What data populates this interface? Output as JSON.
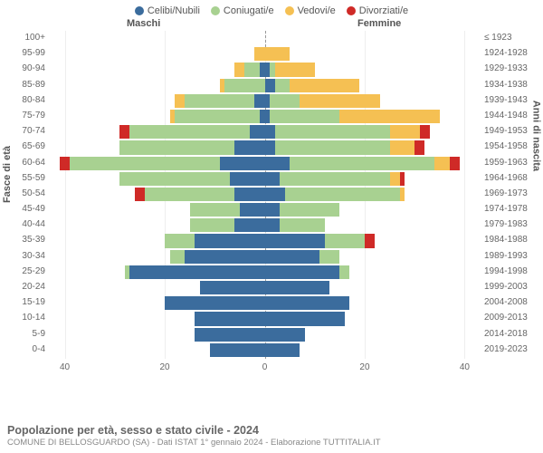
{
  "legend": [
    {
      "label": "Celibi/Nubili",
      "color": "#3b6c9d"
    },
    {
      "label": "Coniugati/e",
      "color": "#a8d191"
    },
    {
      "label": "Vedovi/e",
      "color": "#f5c053"
    },
    {
      "label": "Divorziati/e",
      "color": "#cf2a27"
    }
  ],
  "header_male": "Maschi",
  "header_female": "Femmine",
  "header_year_first": "≤ 1923",
  "axis_left_title": "Fasce di età",
  "axis_right_title": "Anni di nascita",
  "x_ticks": [
    40,
    20,
    0,
    20,
    40
  ],
  "x_max": 43,
  "title": "Popolazione per età, sesso e stato civile - 2024",
  "subtitle": "COMUNE DI BELLOSGUARDO (SA) - Dati ISTAT 1° gennaio 2024 - Elaborazione TUTTITALIA.IT",
  "colors": {
    "celibi": "#3b6c9d",
    "coniugati": "#a8d191",
    "vedovi": "#f5c053",
    "divorziati": "#cf2a27"
  },
  "rows": [
    {
      "age": "100+",
      "year": "≤ 1923",
      "m": [
        0,
        0,
        0,
        0
      ],
      "f": [
        0,
        0,
        0,
        0
      ]
    },
    {
      "age": "95-99",
      "year": "1924-1928",
      "m": [
        0,
        0,
        2,
        0
      ],
      "f": [
        0,
        0,
        5,
        0
      ]
    },
    {
      "age": "90-94",
      "year": "1929-1933",
      "m": [
        1,
        3,
        2,
        0
      ],
      "f": [
        1,
        1,
        8,
        0
      ]
    },
    {
      "age": "85-89",
      "year": "1934-1938",
      "m": [
        0,
        8,
        1,
        0
      ],
      "f": [
        2,
        3,
        14,
        0
      ]
    },
    {
      "age": "80-84",
      "year": "1939-1943",
      "m": [
        2,
        14,
        2,
        0
      ],
      "f": [
        1,
        6,
        16,
        0
      ]
    },
    {
      "age": "75-79",
      "year": "1944-1948",
      "m": [
        1,
        17,
        1,
        0
      ],
      "f": [
        1,
        14,
        20,
        0
      ]
    },
    {
      "age": "70-74",
      "year": "1949-1953",
      "m": [
        3,
        24,
        0,
        2
      ],
      "f": [
        2,
        23,
        6,
        2
      ]
    },
    {
      "age": "65-69",
      "year": "1954-1958",
      "m": [
        6,
        23,
        0,
        0
      ],
      "f": [
        2,
        23,
        5,
        2
      ]
    },
    {
      "age": "60-64",
      "year": "1959-1963",
      "m": [
        9,
        30,
        0,
        2
      ],
      "f": [
        5,
        29,
        3,
        2
      ]
    },
    {
      "age": "55-59",
      "year": "1964-1968",
      "m": [
        7,
        22,
        0,
        0
      ],
      "f": [
        3,
        22,
        2,
        1
      ]
    },
    {
      "age": "50-54",
      "year": "1969-1973",
      "m": [
        6,
        18,
        0,
        2
      ],
      "f": [
        4,
        23,
        1,
        0
      ]
    },
    {
      "age": "45-49",
      "year": "1974-1978",
      "m": [
        5,
        10,
        0,
        0
      ],
      "f": [
        3,
        12,
        0,
        0
      ]
    },
    {
      "age": "40-44",
      "year": "1979-1983",
      "m": [
        6,
        9,
        0,
        0
      ],
      "f": [
        3,
        9,
        0,
        0
      ]
    },
    {
      "age": "35-39",
      "year": "1984-1988",
      "m": [
        14,
        6,
        0,
        0
      ],
      "f": [
        12,
        8,
        0,
        2
      ]
    },
    {
      "age": "30-34",
      "year": "1989-1993",
      "m": [
        16,
        3,
        0,
        0
      ],
      "f": [
        11,
        4,
        0,
        0
      ]
    },
    {
      "age": "25-29",
      "year": "1994-1998",
      "m": [
        27,
        1,
        0,
        0
      ],
      "f": [
        15,
        2,
        0,
        0
      ]
    },
    {
      "age": "20-24",
      "year": "1999-2003",
      "m": [
        13,
        0,
        0,
        0
      ],
      "f": [
        13,
        0,
        0,
        0
      ]
    },
    {
      "age": "15-19",
      "year": "2004-2008",
      "m": [
        20,
        0,
        0,
        0
      ],
      "f": [
        17,
        0,
        0,
        0
      ]
    },
    {
      "age": "10-14",
      "year": "2009-2013",
      "m": [
        14,
        0,
        0,
        0
      ],
      "f": [
        16,
        0,
        0,
        0
      ]
    },
    {
      "age": "5-9",
      "year": "2014-2018",
      "m": [
        14,
        0,
        0,
        0
      ],
      "f": [
        8,
        0,
        0,
        0
      ]
    },
    {
      "age": "0-4",
      "year": "2019-2023",
      "m": [
        11,
        0,
        0,
        0
      ],
      "f": [
        7,
        0,
        0,
        0
      ]
    }
  ]
}
